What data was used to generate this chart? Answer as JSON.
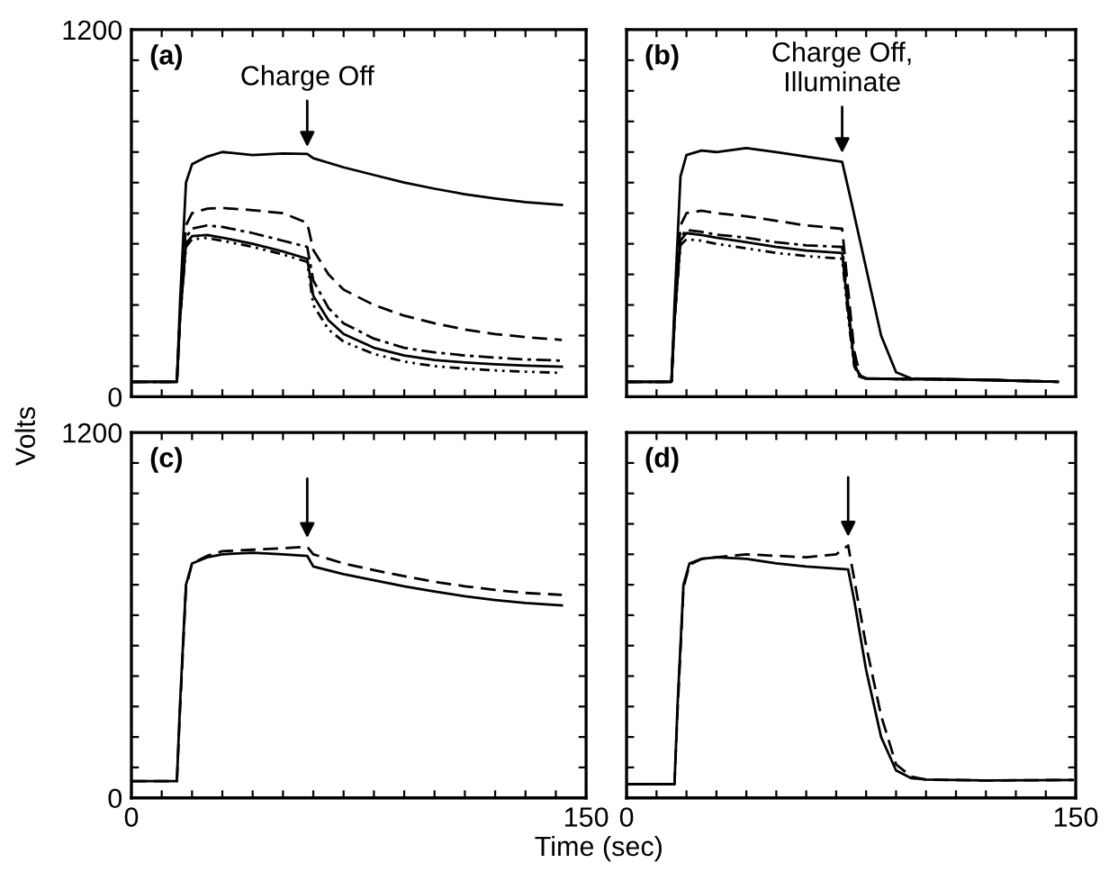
{
  "chart_data": [
    {
      "type": "line",
      "title": "(a)",
      "ylabel": "Volts",
      "xlim": [
        0,
        150
      ],
      "ylim": [
        0,
        1200
      ],
      "tick_labels": "y",
      "grid": false,
      "legend": false,
      "xticks": [
        0,
        {
          "value": 10,
          "label": null
        },
        {
          "value": 20,
          "label": null
        },
        {
          "value": 30,
          "label": null
        },
        {
          "value": 40,
          "label": null
        },
        {
          "value": 50,
          "label": null
        },
        {
          "value": 60,
          "label": null
        },
        {
          "value": 70,
          "label": null
        },
        {
          "value": 80,
          "label": null
        },
        {
          "value": 90,
          "label": null
        },
        {
          "value": 100,
          "label": null
        },
        {
          "value": 110,
          "label": null
        },
        {
          "value": 120,
          "label": null
        },
        {
          "value": 130,
          "label": null
        },
        {
          "value": 140,
          "label": null
        },
        150
      ],
      "yticks": [
        0,
        {
          "value": 100,
          "label": null
        },
        {
          "value": 200,
          "label": null
        },
        {
          "value": 300,
          "label": null
        },
        {
          "value": 400,
          "label": null
        },
        {
          "value": 500,
          "label": null
        },
        {
          "value": 600,
          "label": null
        },
        {
          "value": 700,
          "label": null
        },
        {
          "value": 800,
          "label": null
        },
        {
          "value": 900,
          "label": null
        },
        {
          "value": 1000,
          "label": null
        },
        {
          "value": 1100,
          "label": null
        },
        1200
      ],
      "annotations": [
        {
          "text": "Charge Off",
          "x": 58,
          "y": 800
        }
      ],
      "series": [
        {
          "color": "#000000",
          "line_style": "solid",
          "x": [
            0,
            15,
            16,
            18,
            20,
            25,
            30,
            40,
            50,
            58,
            60,
            70,
            80,
            90,
            100,
            110,
            120,
            130,
            142
          ],
          "values": [
            49,
            49,
            300,
            700,
            760,
            785,
            800,
            790,
            795,
            794,
            780,
            750,
            725,
            700,
            680,
            662,
            648,
            636,
            627
          ]
        },
        {
          "color": "#000000",
          "line_style": "dashed",
          "x": [
            0,
            15,
            16,
            18,
            20,
            25,
            30,
            40,
            50,
            58,
            60,
            65,
            70,
            80,
            90,
            100,
            110,
            120,
            130,
            142
          ],
          "values": [
            49,
            49,
            250,
            560,
            600,
            615,
            617,
            610,
            600,
            568,
            480,
            400,
            350,
            300,
            265,
            240,
            220,
            205,
            195,
            186
          ]
        },
        {
          "color": "#000000",
          "line_style": "dashdot",
          "x": [
            0,
            15,
            16,
            18,
            20,
            25,
            30,
            40,
            50,
            58,
            60,
            65,
            70,
            80,
            90,
            100,
            110,
            120,
            130,
            142
          ],
          "values": [
            49,
            49,
            250,
            520,
            550,
            560,
            555,
            535,
            510,
            490,
            380,
            290,
            240,
            190,
            160,
            145,
            135,
            128,
            122,
            118
          ]
        },
        {
          "color": "#000000",
          "line_style": "solid",
          "x": [
            0,
            15,
            16,
            18,
            20,
            25,
            30,
            40,
            50,
            58,
            60,
            65,
            70,
            80,
            90,
            100,
            110,
            120,
            130,
            142
          ],
          "values": [
            49,
            49,
            250,
            500,
            525,
            529,
            520,
            500,
            475,
            451,
            330,
            250,
            205,
            160,
            135,
            120,
            112,
            106,
            102,
            98
          ]
        },
        {
          "color": "#000000",
          "line_style": "dotted",
          "x": [
            0,
            15,
            16,
            18,
            20,
            25,
            30,
            40,
            50,
            58,
            60,
            65,
            70,
            80,
            90,
            100,
            110,
            120,
            130,
            142
          ],
          "values": [
            49,
            49,
            250,
            490,
            515,
            519,
            510,
            490,
            465,
            441,
            300,
            220,
            180,
            140,
            115,
            100,
            92,
            86,
            82,
            78
          ]
        }
      ]
    },
    {
      "type": "line",
      "title": "(b)",
      "xlim": [
        0,
        150
      ],
      "ylim": [
        0,
        1200
      ],
      "tick_labels": false,
      "grid": false,
      "legend": false,
      "xticks": [
        0,
        {
          "value": 10,
          "label": null
        },
        {
          "value": 20,
          "label": null
        },
        {
          "value": 30,
          "label": null
        },
        {
          "value": 40,
          "label": null
        },
        {
          "value": 50,
          "label": null
        },
        {
          "value": 60,
          "label": null
        },
        {
          "value": 70,
          "label": null
        },
        {
          "value": 80,
          "label": null
        },
        {
          "value": 90,
          "label": null
        },
        {
          "value": 100,
          "label": null
        },
        {
          "value": 110,
          "label": null
        },
        {
          "value": 120,
          "label": null
        },
        {
          "value": 130,
          "label": null
        },
        {
          "value": 140,
          "label": null
        },
        150
      ],
      "yticks": [
        0,
        {
          "value": 100,
          "label": null
        },
        {
          "value": 200,
          "label": null
        },
        {
          "value": 300,
          "label": null
        },
        {
          "value": 400,
          "label": null
        },
        {
          "value": 500,
          "label": null
        },
        {
          "value": 600,
          "label": null
        },
        {
          "value": 700,
          "label": null
        },
        {
          "value": 800,
          "label": null
        },
        {
          "value": 900,
          "label": null
        },
        {
          "value": 1000,
          "label": null
        },
        {
          "value": 1100,
          "label": null
        },
        1200
      ],
      "annotations": [
        {
          "text": "Charge Off,\nIlluminate",
          "x": 72,
          "y": 780
        }
      ],
      "series": [
        {
          "color": "#000000",
          "line_style": "solid",
          "x": [
            0,
            15,
            16,
            18,
            20,
            25,
            30,
            40,
            50,
            60,
            72,
            75,
            80,
            85,
            90,
            95,
            100,
            120,
            144
          ],
          "values": [
            49,
            49,
            300,
            720,
            790,
            805,
            800,
            813,
            800,
            785,
            768,
            640,
            420,
            200,
            80,
            60,
            58,
            55,
            49
          ]
        },
        {
          "color": "#000000",
          "line_style": "dashed",
          "x": [
            0,
            15,
            16,
            18,
            20,
            25,
            30,
            40,
            50,
            60,
            72,
            74,
            76,
            78,
            80,
            90,
            100,
            120,
            144
          ],
          "values": [
            49,
            49,
            250,
            560,
            600,
            608,
            600,
            590,
            575,
            560,
            549,
            350,
            150,
            70,
            60,
            58,
            58,
            55,
            49
          ]
        },
        {
          "color": "#000000",
          "line_style": "dashdot",
          "x": [
            0,
            15,
            16,
            18,
            20,
            25,
            30,
            40,
            50,
            60,
            72,
            74,
            76,
            78,
            80,
            90,
            100,
            120,
            144
          ],
          "values": [
            49,
            49,
            250,
            520,
            545,
            539,
            530,
            520,
            505,
            495,
            490,
            300,
            120,
            65,
            60,
            58,
            58,
            55,
            49
          ]
        },
        {
          "color": "#000000",
          "line_style": "solid",
          "x": [
            0,
            15,
            16,
            18,
            20,
            25,
            30,
            40,
            50,
            60,
            72,
            74,
            76,
            78,
            80,
            90,
            100,
            120,
            144
          ],
          "values": [
            49,
            49,
            250,
            510,
            535,
            529,
            520,
            505,
            490,
            478,
            470,
            280,
            110,
            65,
            60,
            58,
            58,
            55,
            49
          ]
        },
        {
          "color": "#000000",
          "line_style": "dotted",
          "x": [
            0,
            15,
            16,
            18,
            20,
            25,
            30,
            40,
            50,
            60,
            72,
            74,
            76,
            78,
            80,
            90,
            100,
            120,
            144
          ],
          "values": [
            49,
            49,
            250,
            495,
            515,
            510,
            500,
            485,
            470,
            460,
            451,
            260,
            100,
            62,
            60,
            58,
            58,
            55,
            49
          ]
        }
      ]
    },
    {
      "type": "line",
      "title": "(c)",
      "xlabel": "Time (sec)",
      "xlim": [
        0,
        150
      ],
      "ylim": [
        0,
        1200
      ],
      "grid": false,
      "legend": false,
      "xticks": [
        0,
        {
          "value": 10,
          "label": null
        },
        {
          "value": 20,
          "label": null
        },
        {
          "value": 30,
          "label": null
        },
        {
          "value": 40,
          "label": null
        },
        {
          "value": 50,
          "label": null
        },
        {
          "value": 60,
          "label": null
        },
        {
          "value": 70,
          "label": null
        },
        {
          "value": 80,
          "label": null
        },
        {
          "value": 90,
          "label": null
        },
        {
          "value": 100,
          "label": null
        },
        {
          "value": 110,
          "label": null
        },
        {
          "value": 120,
          "label": null
        },
        {
          "value": 130,
          "label": null
        },
        {
          "value": 140,
          "label": null
        },
        150
      ],
      "yticks": [
        0,
        {
          "value": 100,
          "label": null
        },
        {
          "value": 200,
          "label": null
        },
        {
          "value": 300,
          "label": null
        },
        {
          "value": 400,
          "label": null
        },
        {
          "value": 500,
          "label": null
        },
        {
          "value": 600,
          "label": null
        },
        {
          "value": 700,
          "label": null
        },
        {
          "value": 800,
          "label": null
        },
        {
          "value": 900,
          "label": null
        },
        {
          "value": 1000,
          "label": null
        },
        {
          "value": 1100,
          "label": null
        },
        1200
      ],
      "series": [
        {
          "color": "#000000",
          "line_style": "solid",
          "x": [
            0,
            15,
            16,
            18,
            20,
            25,
            30,
            40,
            50,
            58,
            60,
            70,
            80,
            90,
            100,
            110,
            120,
            130,
            142
          ],
          "values": [
            55,
            55,
            300,
            700,
            770,
            790,
            800,
            805,
            800,
            795,
            760,
            735,
            715,
            695,
            678,
            662,
            650,
            640,
            632
          ]
        },
        {
          "color": "#000000",
          "line_style": "dashed",
          "x": [
            0,
            15,
            16,
            18,
            20,
            25,
            30,
            40,
            50,
            58,
            60,
            70,
            80,
            90,
            100,
            110,
            120,
            130,
            142
          ],
          "values": [
            55,
            55,
            280,
            690,
            770,
            795,
            810,
            815,
            820,
            825,
            800,
            770,
            748,
            728,
            710,
            695,
            683,
            673,
            667
          ]
        }
      ]
    },
    {
      "type": "line",
      "title": "(d)",
      "xlim": [
        0,
        150
      ],
      "ylim": [
        0,
        1200
      ],
      "tick_labels": "x",
      "grid": false,
      "legend": false,
      "xticks": [
        0,
        {
          "value": 10,
          "label": null
        },
        {
          "value": 20,
          "label": null
        },
        {
          "value": 30,
          "label": null
        },
        {
          "value": 40,
          "label": null
        },
        {
          "value": 50,
          "label": null
        },
        {
          "value": 60,
          "label": null
        },
        {
          "value": 70,
          "label": null
        },
        {
          "value": 80,
          "label": null
        },
        {
          "value": 90,
          "label": null
        },
        {
          "value": 100,
          "label": null
        },
        {
          "value": 110,
          "label": null
        },
        {
          "value": 120,
          "label": null
        },
        {
          "value": 130,
          "label": null
        },
        {
          "value": 140,
          "label": null
        },
        150
      ],
      "yticks": [
        0,
        {
          "value": 100,
          "label": null
        },
        {
          "value": 200,
          "label": null
        },
        {
          "value": 300,
          "label": null
        },
        {
          "value": 400,
          "label": null
        },
        {
          "value": 500,
          "label": null
        },
        {
          "value": 600,
          "label": null
        },
        {
          "value": 700,
          "label": null
        },
        {
          "value": 800,
          "label": null
        },
        {
          "value": 900,
          "label": null
        },
        {
          "value": 1000,
          "label": null
        },
        {
          "value": 1100,
          "label": null
        },
        1200
      ],
      "series": [
        {
          "color": "#000000",
          "line_style": "solid",
          "x": [
            0,
            16,
            17,
            19,
            21,
            25,
            30,
            40,
            50,
            60,
            74,
            76,
            80,
            85,
            90,
            95,
            100,
            120,
            149
          ],
          "values": [
            45,
            45,
            300,
            700,
            770,
            785,
            790,
            785,
            770,
            760,
            750,
            650,
            420,
            200,
            90,
            65,
            60,
            57,
            59
          ]
        },
        {
          "color": "#000000",
          "line_style": "dashed",
          "x": [
            0,
            16,
            17,
            19,
            21,
            25,
            30,
            40,
            50,
            60,
            70,
            74,
            76,
            80,
            85,
            90,
            95,
            100,
            120,
            149
          ],
          "values": [
            45,
            45,
            280,
            690,
            765,
            785,
            790,
            800,
            795,
            790,
            800,
            829,
            720,
            500,
            270,
            110,
            70,
            60,
            57,
            59
          ]
        }
      ]
    }
  ]
}
